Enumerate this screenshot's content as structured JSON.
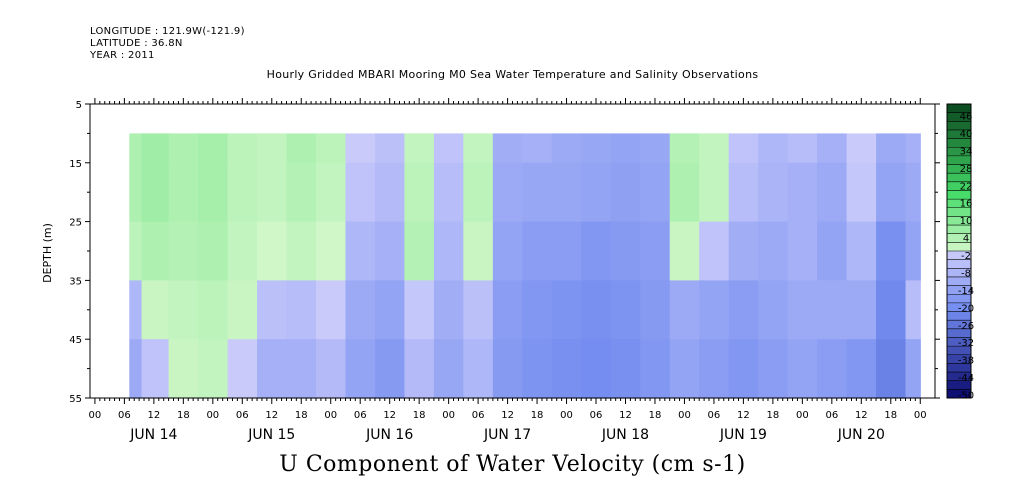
{
  "header": {
    "longitude": "LONGITUDE : 121.9W(-121.9)",
    "latitude": "LATITUDE : 36.8N",
    "year": "YEAR : 2011"
  },
  "chart_data": {
    "type": "heatmap",
    "title": "Hourly Gridded MBARI Mooring M0 Sea Water Temperature and Salinity Observations",
    "caption": "U Component of Water Velocity (cm s-1)",
    "ylabel": "DEPTH (m)",
    "y_ticks": [
      5,
      15,
      25,
      35,
      45,
      55
    ],
    "ylim": [
      5,
      55
    ],
    "y_inverted": true,
    "x_hour_ticks": [
      "00",
      "06",
      "12",
      "18",
      "00",
      "06",
      "12",
      "18",
      "00",
      "06",
      "12",
      "18",
      "00",
      "06",
      "12",
      "18",
      "00",
      "06",
      "12",
      "18",
      "00",
      "06",
      "12",
      "18",
      "00",
      "06",
      "12",
      "18",
      "00"
    ],
    "x_days": [
      "JUN 14",
      "JUN 15",
      "JUN 16",
      "JUN 17",
      "JUN 18",
      "JUN 19",
      "JUN 20"
    ],
    "colorbar": {
      "labels": [
        "46",
        "40",
        "34",
        "28",
        "22",
        "16",
        "10",
        "4",
        "-2",
        "-8",
        "-14",
        "-20",
        "-26",
        "-32",
        "-38",
        "-44",
        "-50"
      ],
      "range": [
        -50,
        52
      ]
    },
    "data_depth_range": [
      10,
      55
    ],
    "data_time_range_hours": [
      7,
      168
    ],
    "time_hours": [
      7,
      12,
      18,
      24,
      30,
      36,
      42,
      48,
      54,
      60,
      66,
      72,
      78,
      84,
      90,
      96,
      102,
      108,
      114,
      120,
      126,
      132,
      138,
      144,
      150,
      156,
      162,
      168
    ],
    "u_by_depth": [
      {
        "depth": 10,
        "values": [
          6,
          8,
          6,
          7,
          4,
          3,
          6,
          4,
          0,
          -3,
          3,
          -2,
          3,
          -9,
          -8,
          -10,
          -11,
          -12,
          -11,
          5,
          3,
          -2,
          -6,
          -4,
          -8,
          0,
          -10,
          -8
        ]
      },
      {
        "depth": 20,
        "values": [
          6,
          8,
          6,
          7,
          4,
          3,
          5,
          3,
          -2,
          -5,
          4,
          -4,
          4,
          -10,
          -11,
          -11,
          -12,
          -13,
          -12,
          6,
          3,
          -4,
          -7,
          -8,
          -10,
          -1,
          -12,
          -10
        ]
      },
      {
        "depth": 30,
        "values": [
          4,
          6,
          5,
          6,
          3,
          1,
          3,
          1,
          -6,
          -8,
          5,
          -6,
          2,
          -12,
          -14,
          -14,
          -16,
          -15,
          -14,
          2,
          -2,
          -9,
          -10,
          -8,
          -12,
          -6,
          -18,
          -12
        ]
      },
      {
        "depth": 40,
        "values": [
          -6,
          2,
          3,
          4,
          2,
          -3,
          -4,
          0,
          -10,
          -12,
          -1,
          -9,
          -3,
          -14,
          -16,
          -17,
          -18,
          -17,
          -15,
          -10,
          -12,
          -14,
          -12,
          -10,
          -10,
          -10,
          -20,
          -4
        ]
      },
      {
        "depth": 50,
        "values": [
          -10,
          -2,
          2,
          3,
          0,
          -8,
          -8,
          -5,
          -12,
          -15,
          -5,
          -11,
          -6,
          -15,
          -17,
          -18,
          -19,
          -18,
          -16,
          -12,
          -14,
          -16,
          -14,
          -12,
          -14,
          -16,
          -22,
          -12
        ]
      }
    ]
  }
}
